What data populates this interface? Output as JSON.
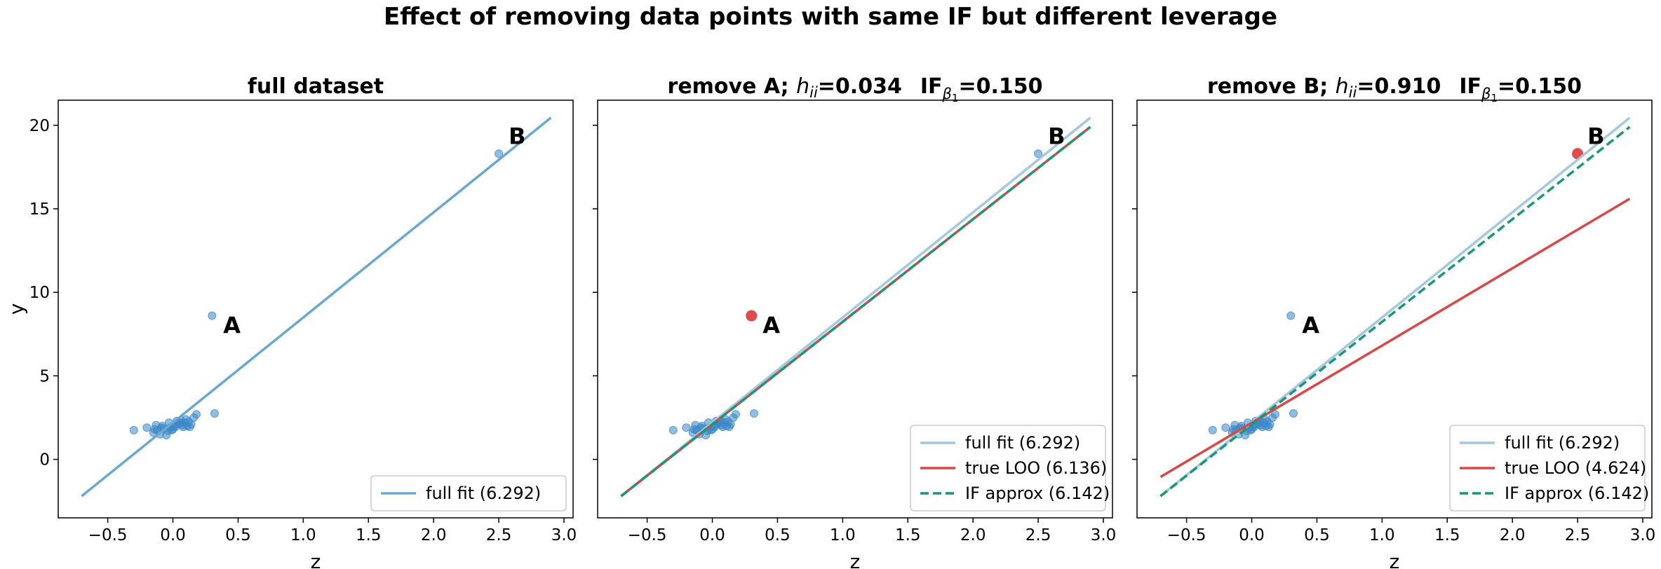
{
  "figure": {
    "title": "Effect of removing data points with same IF but different leverage"
  },
  "colors": {
    "points": "#3a86c6",
    "full_fit": "#6aa8cf",
    "full_fit_faded": "#a5c8e1",
    "true_loo": "#dc4646",
    "if_approx": "#189974",
    "highlight": "#e24a4a"
  },
  "chart_data": [
    {
      "type": "scatter",
      "title": "full dataset",
      "xlabel": "z",
      "ylabel": "y",
      "xlim": [
        -0.88,
        3.07
      ],
      "ylim": [
        -3.5,
        21.5
      ],
      "xticks": [
        "−0.5",
        "0.0",
        "0.5",
        "1.0",
        "1.5",
        "2.0",
        "2.5",
        "3.0"
      ],
      "xtick_values": [
        -0.5,
        0,
        0.5,
        1,
        1.5,
        2,
        2.5,
        3
      ],
      "yticks": [
        "0",
        "5",
        "10",
        "15",
        "20"
      ],
      "ytick_values": [
        0,
        5,
        10,
        15,
        20
      ],
      "grid": false,
      "legend_position": "lower-right",
      "points_label_A": "A",
      "points_label_B": "B",
      "highlight": null,
      "series": [
        {
          "name": "full fit  (6.292)",
          "kind": "line",
          "style": "solid",
          "color_key": "full_fit",
          "x": [
            -0.7,
            2.9
          ],
          "y": [
            -2.2,
            20.45
          ]
        }
      ]
    },
    {
      "type": "scatter",
      "title_prefix": "remove A;  ",
      "title_h": "h",
      "title_h_sub": "ii",
      "title_h_value": "=0.034",
      "title_if": "IF",
      "title_if_sub": "β",
      "title_if_subsub": "1",
      "title_if_value": "=0.150",
      "xlabel": "z",
      "ylabel": "",
      "xlim": [
        -0.88,
        3.07
      ],
      "ylim": [
        -3.5,
        21.5
      ],
      "xticks": [
        "−0.5",
        "0.0",
        "0.5",
        "1.0",
        "1.5",
        "2.0",
        "2.5",
        "3.0"
      ],
      "xtick_values": [
        -0.5,
        0,
        0.5,
        1,
        1.5,
        2,
        2.5,
        3
      ],
      "yticks": [],
      "ytick_values": [
        0,
        5,
        10,
        15,
        20
      ],
      "grid": false,
      "legend_position": "lower-right",
      "points_label_A": "A",
      "points_label_B": "B",
      "highlight": "A",
      "series": [
        {
          "name": "full fit  (6.292)",
          "kind": "line",
          "style": "solid",
          "color_key": "full_fit_faded",
          "x": [
            -0.7,
            2.9
          ],
          "y": [
            -2.2,
            20.45
          ]
        },
        {
          "name": "true LOO  (6.136)",
          "kind": "line",
          "style": "solid",
          "color_key": "true_loo",
          "x": [
            -0.7,
            2.9
          ],
          "y": [
            -2.2,
            19.9
          ]
        },
        {
          "name": "IF approx (6.142)",
          "kind": "line",
          "style": "dashed",
          "color_key": "if_approx",
          "x": [
            -0.7,
            2.9
          ],
          "y": [
            -2.2,
            19.9
          ]
        }
      ]
    },
    {
      "type": "scatter",
      "title_prefix": "remove B;  ",
      "title_h": "h",
      "title_h_sub": "ii",
      "title_h_value": "=0.910",
      "title_if": "IF",
      "title_if_sub": "β",
      "title_if_subsub": "1",
      "title_if_value": "=0.150",
      "xlabel": "z",
      "ylabel": "",
      "xlim": [
        -0.88,
        3.07
      ],
      "ylim": [
        -3.5,
        21.5
      ],
      "xticks": [
        "−0.5",
        "0.0",
        "0.5",
        "1.0",
        "1.5",
        "2.0",
        "2.5",
        "3.0"
      ],
      "xtick_values": [
        -0.5,
        0,
        0.5,
        1,
        1.5,
        2,
        2.5,
        3
      ],
      "yticks": [],
      "ytick_values": [
        0,
        5,
        10,
        15,
        20
      ],
      "grid": false,
      "legend_position": "lower-right",
      "points_label_A": "A",
      "points_label_B": "B",
      "highlight": "B",
      "series": [
        {
          "name": "full fit  (6.292)",
          "kind": "line",
          "style": "solid",
          "color_key": "full_fit_faded",
          "x": [
            -0.7,
            2.9
          ],
          "y": [
            -2.2,
            20.45
          ]
        },
        {
          "name": "true LOO  (4.624)",
          "kind": "line",
          "style": "solid",
          "color_key": "true_loo",
          "x": [
            -0.7,
            2.9
          ],
          "y": [
            -1.05,
            15.6
          ]
        },
        {
          "name": "IF approx (6.142)",
          "kind": "line",
          "style": "dashed",
          "color_key": "if_approx",
          "x": [
            -0.7,
            2.9
          ],
          "y": [
            -2.2,
            19.9
          ]
        }
      ]
    }
  ],
  "scatter_points": {
    "x": [
      -0.3,
      -0.2,
      -0.15,
      -0.14,
      -0.13,
      -0.12,
      -0.1,
      -0.09,
      -0.08,
      -0.07,
      -0.05,
      -0.04,
      -0.03,
      -0.02,
      -0.01,
      0.0,
      0.01,
      0.02,
      0.03,
      0.04,
      0.05,
      0.06,
      0.07,
      0.08,
      0.09,
      0.1,
      0.11,
      0.12,
      0.13,
      0.14,
      0.16,
      0.18,
      0.32
    ],
    "y": [
      1.75,
      1.9,
      1.6,
      1.8,
      2.05,
      1.75,
      1.5,
      1.9,
      2.0,
      1.85,
      1.45,
      1.7,
      2.2,
      1.9,
      1.75,
      1.8,
      2.0,
      1.95,
      2.3,
      2.1,
      2.2,
      2.35,
      2.05,
      1.95,
      2.2,
      2.4,
      2.0,
      2.25,
      1.95,
      2.1,
      2.5,
      2.7,
      2.75
    ]
  },
  "point_A": {
    "x": 0.3,
    "y": 8.6
  },
  "point_B": {
    "x": 2.5,
    "y": 18.3
  }
}
